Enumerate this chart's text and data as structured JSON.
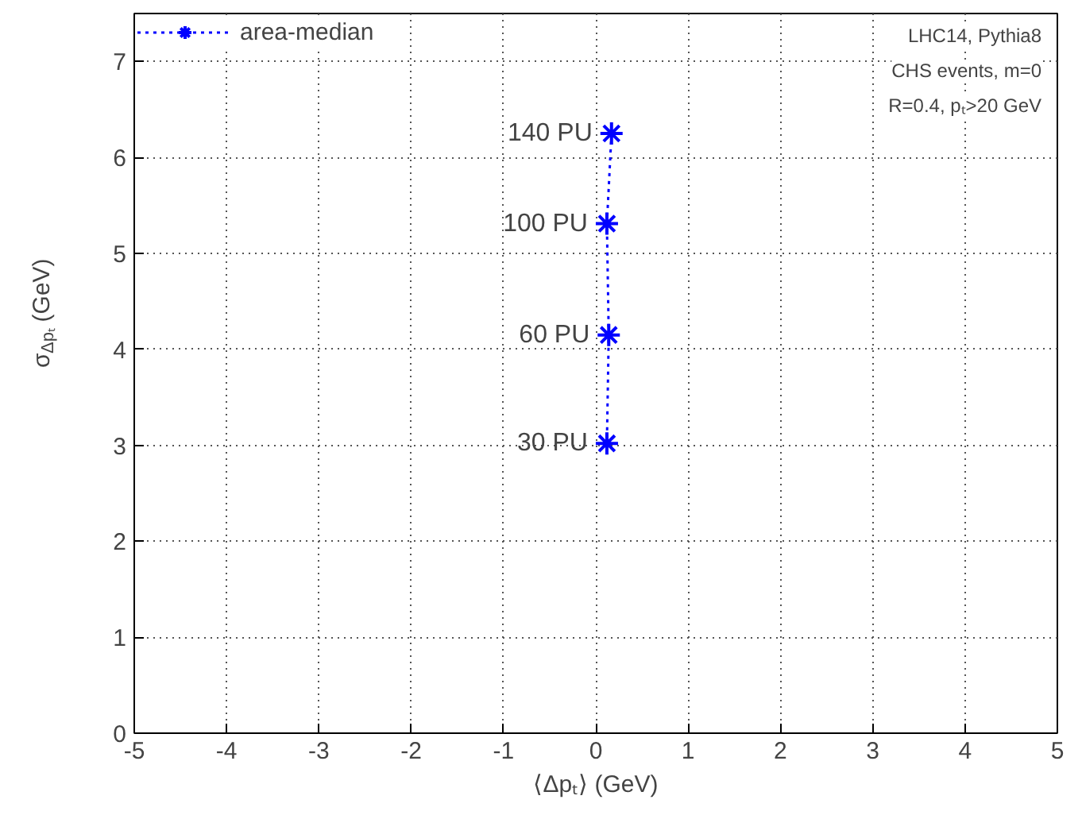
{
  "chart_data": {
    "type": "line",
    "xlabel": "⟨Δpₜ⟩ (GeV)",
    "ylabel": "σ$_{Δpₜ}$ (GeV)",
    "x": [
      0.17,
      0.12,
      0.14,
      0.12
    ],
    "series": [
      {
        "name": "area-median",
        "color": "#0000ff",
        "values": [
          6.25,
          5.31,
          4.15,
          3.02
        ]
      }
    ],
    "xlim": [
      -5,
      5
    ],
    "ylim": [
      0,
      7.5
    ],
    "xticks": [
      -5,
      -4,
      -3,
      -2,
      -1,
      0,
      1,
      2,
      3,
      4,
      5
    ],
    "yticks": [
      0,
      1,
      2,
      3,
      4,
      5,
      6,
      7
    ],
    "grid": true,
    "legend": "top left",
    "marker": "cross",
    "line_style": "dotted",
    "annotations": [
      {
        "text": "140 PU",
        "x": 0.17,
        "y": 6.25
      },
      {
        "text": "100 PU",
        "x": 0.12,
        "y": 5.31
      },
      {
        "text": "60 PU",
        "x": 0.14,
        "y": 4.15
      },
      {
        "text": "30 PU",
        "x": 0.12,
        "y": 3.02
      },
      "LHC14, Pythia8",
      "CHS events, m=0",
      "R=0.4, pₜ>20 GeV"
    ]
  }
}
